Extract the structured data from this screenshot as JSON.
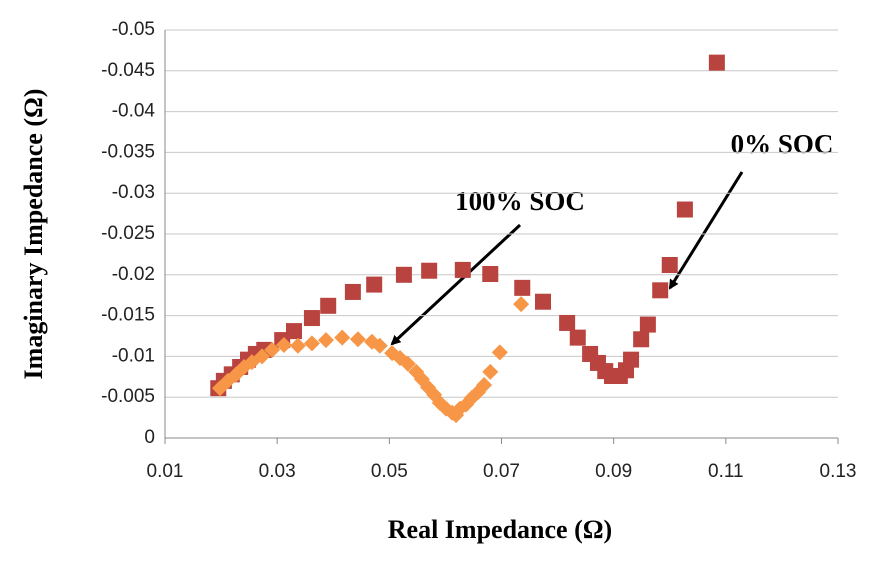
{
  "chart_data": {
    "type": "scatter",
    "x_label": "Real Impedance (Ω)",
    "y_label": "Imaginary Impedance (Ω)",
    "xlim": [
      0.01,
      0.13
    ],
    "xticks": [
      0.01,
      0.03,
      0.05,
      0.07,
      0.09,
      0.11,
      0.13
    ],
    "ylim": [
      0,
      -0.05
    ],
    "yticks": [
      0,
      -0.005,
      -0.01,
      -0.015,
      -0.02,
      -0.025,
      -0.03,
      -0.035,
      -0.04,
      -0.045,
      -0.05
    ],
    "grid": true,
    "series": [
      {
        "name": "0% SOC",
        "color": "#b8433f",
        "marker": "square",
        "x": [
          0.0195,
          0.0205,
          0.0219,
          0.0234,
          0.0248,
          0.0262,
          0.0277,
          0.0309,
          0.033,
          0.0362,
          0.0391,
          0.0435,
          0.0473,
          0.0526,
          0.0571,
          0.0631,
          0.068,
          0.0737,
          0.0774,
          0.0817,
          0.0836,
          0.0858,
          0.0872,
          0.0885,
          0.0897,
          0.0911,
          0.0922,
          0.0931,
          0.0949,
          0.0961,
          0.0983,
          0.1,
          0.1027,
          0.1084
        ],
        "values": [
          -0.0061,
          -0.007,
          -0.0078,
          -0.0087,
          -0.0096,
          -0.0103,
          -0.0108,
          -0.012,
          -0.0131,
          -0.0147,
          -0.0162,
          -0.0179,
          -0.0188,
          -0.02,
          -0.0205,
          -0.0206,
          -0.0201,
          -0.0184,
          -0.0167,
          -0.0141,
          -0.0123,
          -0.0103,
          -0.0092,
          -0.0082,
          -0.0076,
          -0.0076,
          -0.0083,
          -0.0096,
          -0.0121,
          -0.0139,
          -0.0181,
          -0.0212,
          -0.028,
          -0.046
        ]
      },
      {
        "name": "100% SOC",
        "color": "#f79646",
        "marker": "diamond",
        "x": [
          0.0198,
          0.0212,
          0.0227,
          0.0241,
          0.0255,
          0.0273,
          0.0291,
          0.0312,
          0.0337,
          0.0362,
          0.0387,
          0.0416,
          0.0444,
          0.0469,
          0.0483,
          0.0505,
          0.0519,
          0.0533,
          0.0548,
          0.0558,
          0.0569,
          0.058,
          0.059,
          0.0601,
          0.0612,
          0.0619,
          0.0626,
          0.0637,
          0.0647,
          0.0658,
          0.0669,
          0.068,
          0.0697,
          0.0735
        ],
        "values": [
          -0.0061,
          -0.007,
          -0.0078,
          -0.0087,
          -0.0093,
          -0.01,
          -0.0108,
          -0.0114,
          -0.0113,
          -0.0116,
          -0.012,
          -0.0123,
          -0.0121,
          -0.0118,
          -0.0113,
          -0.0104,
          -0.0098,
          -0.0091,
          -0.0081,
          -0.0072,
          -0.0062,
          -0.0053,
          -0.0043,
          -0.0036,
          -0.0031,
          -0.0028,
          -0.0036,
          -0.0041,
          -0.0049,
          -0.0056,
          -0.0065,
          -0.0081,
          -0.0105,
          -0.0164
        ]
      }
    ]
  }
}
